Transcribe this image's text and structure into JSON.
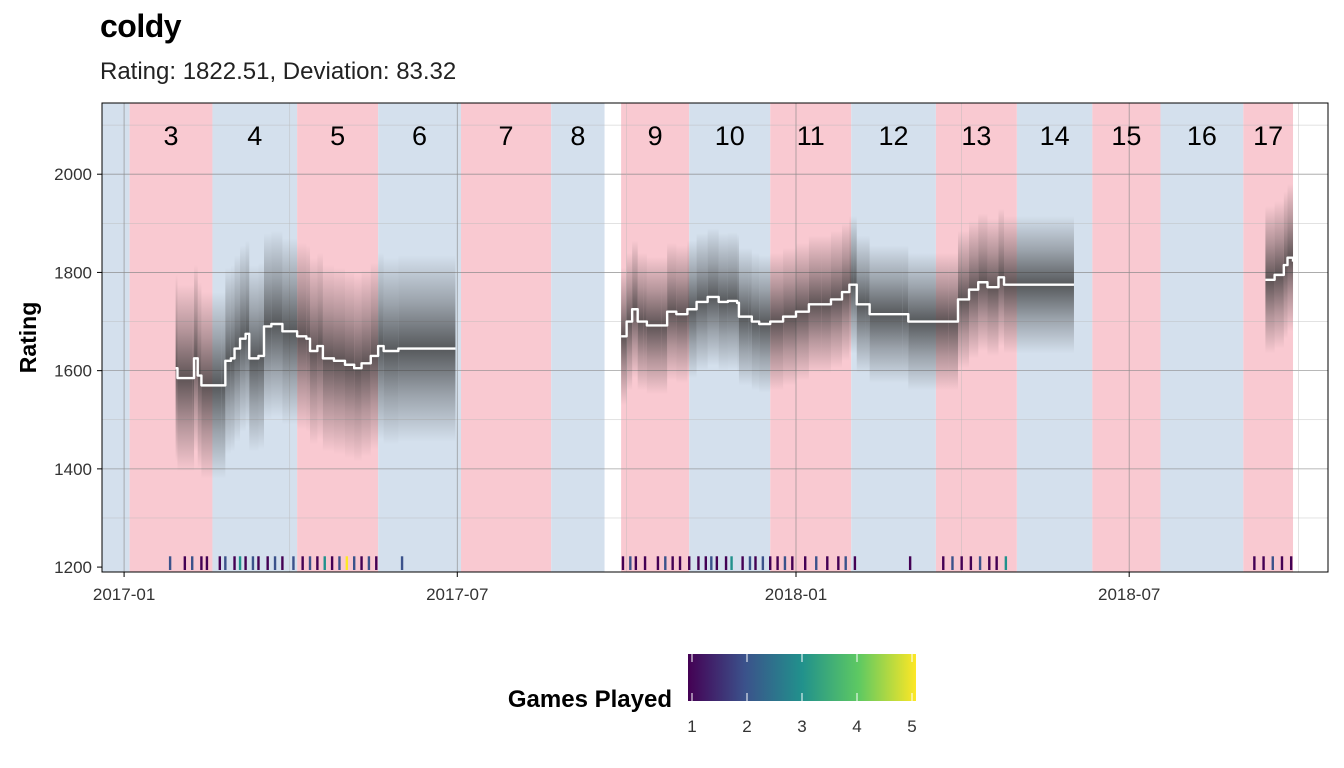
{
  "chart_data": {
    "type": "line",
    "title": "coldy",
    "subtitle": "Rating: 1822.51, Deviation: 83.32",
    "ylabel": "Rating",
    "xlabel": "",
    "xlim": [
      "2016-12-20",
      "2018-10-17"
    ],
    "ylim": [
      1190,
      2145
    ],
    "x_ticks": [
      {
        "date": "2017-01-01",
        "label": "2017-01"
      },
      {
        "date": "2017-07-01",
        "label": "2017-07"
      },
      {
        "date": "2018-01-01",
        "label": "2018-01"
      },
      {
        "date": "2018-07-01",
        "label": "2018-07"
      }
    ],
    "y_ticks": [
      1200,
      1400,
      1600,
      1800,
      2000
    ],
    "grid": true,
    "periods": [
      {
        "label": "",
        "start": "2016-12-20",
        "end": "2017-01-04",
        "color": "blue"
      },
      {
        "label": "3",
        "start": "2017-01-04",
        "end": "2017-02-18",
        "color": "red"
      },
      {
        "label": "4",
        "start": "2017-02-18",
        "end": "2017-04-05",
        "color": "blue"
      },
      {
        "label": "5",
        "start": "2017-04-05",
        "end": "2017-05-19",
        "color": "red"
      },
      {
        "label": "6",
        "start": "2017-05-19",
        "end": "2017-07-03",
        "color": "blue"
      },
      {
        "label": "7",
        "start": "2017-07-03",
        "end": "2017-08-21",
        "color": "red"
      },
      {
        "label": "8",
        "start": "2017-08-21",
        "end": "2017-09-19",
        "color": "blue"
      },
      {
        "label": "9",
        "start": "2017-09-28",
        "end": "2017-11-04",
        "color": "red"
      },
      {
        "label": "10",
        "start": "2017-11-04",
        "end": "2017-12-18",
        "color": "blue"
      },
      {
        "label": "11",
        "start": "2017-12-18",
        "end": "2018-01-31",
        "color": "red"
      },
      {
        "label": "12",
        "start": "2018-01-31",
        "end": "2018-03-18",
        "color": "blue"
      },
      {
        "label": "13",
        "start": "2018-03-18",
        "end": "2018-05-01",
        "color": "red"
      },
      {
        "label": "14",
        "start": "2018-05-01",
        "end": "2018-06-11",
        "color": "blue"
      },
      {
        "label": "15",
        "start": "2018-06-11",
        "end": "2018-07-18",
        "color": "red"
      },
      {
        "label": "16",
        "start": "2018-07-18",
        "end": "2018-09-01",
        "color": "blue"
      },
      {
        "label": "17",
        "start": "2018-09-01",
        "end": "2018-09-28",
        "color": "red"
      }
    ],
    "series": [
      {
        "points": [
          [
            "2017-01-29",
            1605
          ],
          [
            "2017-01-30",
            1585
          ],
          [
            "2017-02-07",
            1585
          ],
          [
            "2017-02-08",
            1625
          ],
          [
            "2017-02-10",
            1590
          ],
          [
            "2017-02-12",
            1570
          ],
          [
            "2017-02-23",
            1570
          ],
          [
            "2017-02-25",
            1620
          ],
          [
            "2017-02-28",
            1625
          ],
          [
            "2017-03-02",
            1645
          ],
          [
            "2017-03-05",
            1665
          ],
          [
            "2017-03-08",
            1675
          ],
          [
            "2017-03-10",
            1625
          ],
          [
            "2017-03-15",
            1630
          ],
          [
            "2017-03-18",
            1690
          ],
          [
            "2017-03-22",
            1695
          ],
          [
            "2017-03-28",
            1680
          ],
          [
            "2017-04-05",
            1670
          ],
          [
            "2017-04-10",
            1665
          ],
          [
            "2017-04-12",
            1640
          ],
          [
            "2017-04-16",
            1650
          ],
          [
            "2017-04-19",
            1625
          ],
          [
            "2017-04-25",
            1620
          ],
          [
            "2017-05-01",
            1612
          ],
          [
            "2017-05-06",
            1605
          ],
          [
            "2017-05-10",
            1615
          ],
          [
            "2017-05-15",
            1630
          ],
          [
            "2017-05-19",
            1650
          ],
          [
            "2017-05-22",
            1640
          ],
          [
            "2017-05-30",
            1645
          ],
          [
            "2017-06-30",
            1645
          ]
        ]
      },
      {
        "points": [
          [
            "2017-09-28",
            1670
          ],
          [
            "2017-10-01",
            1700
          ],
          [
            "2017-10-04",
            1725
          ],
          [
            "2017-10-07",
            1700
          ],
          [
            "2017-10-10",
            1700
          ],
          [
            "2017-10-12",
            1692
          ],
          [
            "2017-10-20",
            1692
          ],
          [
            "2017-10-23",
            1720
          ],
          [
            "2017-10-28",
            1715
          ],
          [
            "2017-11-03",
            1725
          ],
          [
            "2017-11-08",
            1740
          ],
          [
            "2017-11-14",
            1750
          ],
          [
            "2017-11-20",
            1740
          ],
          [
            "2017-11-25",
            1742
          ],
          [
            "2017-11-30",
            1738
          ],
          [
            "2017-12-01",
            1710
          ],
          [
            "2017-12-06",
            1710
          ],
          [
            "2017-12-08",
            1700
          ],
          [
            "2017-12-12",
            1695
          ],
          [
            "2017-12-18",
            1700
          ],
          [
            "2017-12-25",
            1710
          ],
          [
            "2018-01-01",
            1720
          ],
          [
            "2018-01-08",
            1735
          ],
          [
            "2018-01-15",
            1735
          ],
          [
            "2018-01-20",
            1745
          ],
          [
            "2018-01-26",
            1760
          ],
          [
            "2018-01-30",
            1775
          ],
          [
            "2018-02-01",
            1775
          ],
          [
            "2018-02-03",
            1735
          ],
          [
            "2018-02-08",
            1735
          ],
          [
            "2018-02-10",
            1715
          ],
          [
            "2018-02-28",
            1715
          ],
          [
            "2018-03-03",
            1700
          ],
          [
            "2018-03-25",
            1700
          ],
          [
            "2018-03-30",
            1745
          ],
          [
            "2018-04-05",
            1765
          ],
          [
            "2018-04-10",
            1780
          ],
          [
            "2018-04-15",
            1770
          ],
          [
            "2018-04-21",
            1790
          ],
          [
            "2018-04-24",
            1775
          ],
          [
            "2018-06-01",
            1775
          ]
        ]
      },
      {
        "points": [
          [
            "2018-09-13",
            1785
          ],
          [
            "2018-09-18",
            1795
          ],
          [
            "2018-09-23",
            1815
          ],
          [
            "2018-09-25",
            1830
          ],
          [
            "2018-09-28",
            1822
          ]
        ]
      }
    ],
    "games_played_rug": [
      [
        "2017-01-26",
        2
      ],
      [
        "2017-02-03",
        1
      ],
      [
        "2017-02-07",
        2
      ],
      [
        "2017-02-12",
        1
      ],
      [
        "2017-02-15",
        1
      ],
      [
        "2017-02-22",
        1
      ],
      [
        "2017-02-25",
        2
      ],
      [
        "2017-03-02",
        1
      ],
      [
        "2017-03-05",
        3
      ],
      [
        "2017-03-08",
        1
      ],
      [
        "2017-03-12",
        2
      ],
      [
        "2017-03-15",
        1
      ],
      [
        "2017-03-20",
        1
      ],
      [
        "2017-03-24",
        2
      ],
      [
        "2017-03-28",
        1
      ],
      [
        "2017-04-03",
        2
      ],
      [
        "2017-04-08",
        1
      ],
      [
        "2017-04-12",
        2
      ],
      [
        "2017-04-16",
        1
      ],
      [
        "2017-04-20",
        3
      ],
      [
        "2017-04-24",
        1
      ],
      [
        "2017-04-28",
        2
      ],
      [
        "2017-05-02",
        5
      ],
      [
        "2017-05-06",
        2
      ],
      [
        "2017-05-10",
        1
      ],
      [
        "2017-05-14",
        2
      ],
      [
        "2017-05-18",
        1
      ],
      [
        "2017-06-01",
        2
      ],
      [
        "2017-09-29",
        1
      ],
      [
        "2017-10-03",
        2
      ],
      [
        "2017-10-06",
        1
      ],
      [
        "2017-10-11",
        1
      ],
      [
        "2017-10-18",
        1
      ],
      [
        "2017-10-22",
        2
      ],
      [
        "2017-10-26",
        1
      ],
      [
        "2017-10-30",
        1
      ],
      [
        "2017-11-04",
        1
      ],
      [
        "2017-11-09",
        1
      ],
      [
        "2017-11-13",
        1
      ],
      [
        "2017-11-16",
        2
      ],
      [
        "2017-11-19",
        1
      ],
      [
        "2017-11-24",
        1
      ],
      [
        "2017-11-27",
        3
      ],
      [
        "2017-12-03",
        1
      ],
      [
        "2017-12-07",
        2
      ],
      [
        "2017-12-10",
        1
      ],
      [
        "2017-12-14",
        2
      ],
      [
        "2017-12-18",
        1
      ],
      [
        "2017-12-22",
        1
      ],
      [
        "2017-12-26",
        2
      ],
      [
        "2017-12-30",
        1
      ],
      [
        "2018-01-06",
        1
      ],
      [
        "2018-01-12",
        2
      ],
      [
        "2018-01-18",
        1
      ],
      [
        "2018-01-24",
        1
      ],
      [
        "2018-01-28",
        2
      ],
      [
        "2018-02-02",
        1
      ],
      [
        "2018-03-04",
        1
      ],
      [
        "2018-03-22",
        1
      ],
      [
        "2018-03-27",
        2
      ],
      [
        "2018-04-01",
        1
      ],
      [
        "2018-04-06",
        1
      ],
      [
        "2018-04-11",
        2
      ],
      [
        "2018-04-16",
        1
      ],
      [
        "2018-04-20",
        1
      ],
      [
        "2018-04-25",
        3
      ],
      [
        "2018-09-07",
        1
      ],
      [
        "2018-09-12",
        1
      ],
      [
        "2018-09-17",
        2
      ],
      [
        "2018-09-22",
        1
      ],
      [
        "2018-09-27",
        1
      ]
    ],
    "legend": {
      "title": "Games Played",
      "position": "bottom",
      "ticks": [
        1,
        2,
        3,
        4,
        5
      ],
      "colors": [
        "#440154",
        "#3b528b",
        "#21918c",
        "#5ec962",
        "#fde725"
      ]
    },
    "colors": {
      "period_red": "#f9c9d1",
      "period_blue": "#d4e0ed",
      "rating_line": "#ffffff",
      "uncertainty_band": "#333333"
    }
  }
}
